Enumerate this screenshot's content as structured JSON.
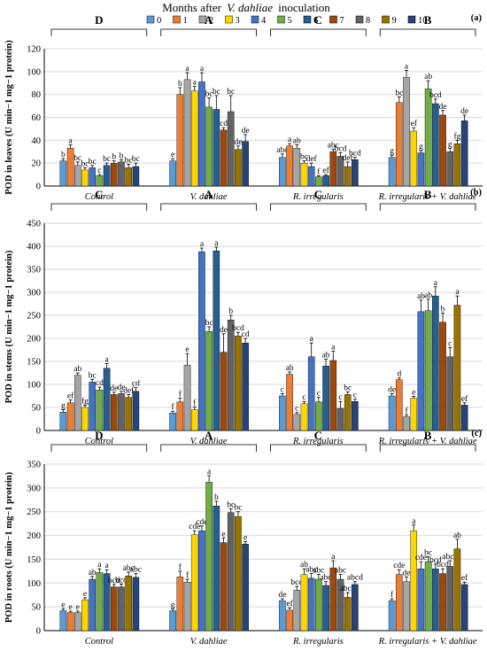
{
  "legend": {
    "title_prefix": "Months after",
    "title_species": "V. dahliae",
    "title_suffix": "inoculation",
    "labels": [
      "0",
      "1",
      "2",
      "3",
      "4",
      "5",
      "6",
      "7",
      "8",
      "9",
      "10"
    ],
    "colors": [
      "#5b9bd5",
      "#ed7d31",
      "#a5a5a5",
      "#ffd700",
      "#4472c4",
      "#70ad47",
      "#255e91",
      "#9e480e",
      "#636363",
      "#997300",
      "#264478"
    ]
  },
  "chart_data": [
    {
      "type": "bar",
      "panel": "(a)",
      "ylabel": "POD in leaves (U min−1 mg−1 protein)",
      "ylim": [
        0,
        120
      ],
      "yticks": [
        0,
        20,
        40,
        60,
        80,
        100,
        120
      ],
      "grid": true,
      "categories": [
        "Control",
        "V. dahliae",
        "R. irregularis",
        "R. irregularis + V. dahliae"
      ],
      "group_letters": [
        "D",
        "A",
        "C",
        "B"
      ],
      "values": [
        [
          22,
          33,
          18,
          14,
          16,
          9,
          18,
          20,
          21,
          16,
          17
        ],
        [
          22,
          80,
          93,
          83,
          91,
          69,
          67,
          49,
          65,
          32,
          39
        ],
        [
          25,
          35,
          33,
          20,
          17,
          8,
          9,
          30,
          26,
          17,
          23
        ],
        [
          25,
          73,
          95,
          48,
          29,
          85,
          72,
          62,
          30,
          37,
          57
        ]
      ],
      "errors": [
        [
          2,
          3,
          3,
          2,
          2,
          1,
          2,
          2,
          2,
          3,
          3
        ],
        [
          2,
          6,
          6,
          4,
          8,
          8,
          12,
          2,
          14,
          3,
          6
        ],
        [
          3,
          2,
          3,
          2,
          3,
          1,
          1,
          2,
          3,
          4,
          2
        ],
        [
          2,
          5,
          6,
          3,
          2,
          7,
          4,
          4,
          3,
          3,
          5
        ]
      ],
      "sig": [
        [
          "b",
          "a",
          "bc",
          "bc",
          "bc",
          "c",
          "bc",
          "b",
          "b",
          "bc",
          "bc"
        ],
        [
          "e",
          "b",
          "a",
          "a",
          "a",
          "bc",
          "bc",
          "cd",
          "bc",
          "de",
          "de"
        ],
        [
          "abc",
          "a",
          "ab",
          "bc",
          "def",
          "f",
          "ef",
          "abc",
          "bcd",
          "def",
          "bcd"
        ],
        [
          "g",
          "bc",
          "a",
          "ef",
          "g",
          "ab",
          "bcd",
          "de",
          "g",
          "fg",
          "de"
        ]
      ]
    },
    {
      "type": "bar",
      "panel": "(b)",
      "ylabel": "POD in stems (U min−1 mg−1 protein)",
      "ylim": [
        0,
        450
      ],
      "yticks": [
        0,
        50,
        100,
        150,
        200,
        250,
        300,
        350,
        400,
        450
      ],
      "grid": true,
      "categories": [
        "Control",
        "V. dahliae",
        "R. irregularis",
        "R. irregularis + V. dahliae"
      ],
      "group_letters": [
        "C",
        "A",
        "C",
        "B"
      ],
      "values": [
        [
          40,
          60,
          120,
          50,
          105,
          88,
          135,
          78,
          80,
          72,
          85
        ],
        [
          38,
          62,
          142,
          45,
          388,
          215,
          390,
          170,
          240,
          205,
          190
        ],
        [
          75,
          122,
          35,
          58,
          160,
          62,
          140,
          152,
          48,
          78,
          63
        ],
        [
          75,
          110,
          30,
          70,
          258,
          260,
          292,
          235,
          160,
          272,
          55
        ]
      ],
      "errors": [
        [
          5,
          6,
          5,
          5,
          6,
          6,
          10,
          5,
          5,
          6,
          8
        ],
        [
          4,
          8,
          25,
          6,
          8,
          10,
          8,
          40,
          10,
          8,
          10
        ],
        [
          5,
          5,
          4,
          5,
          30,
          10,
          15,
          20,
          15,
          6,
          5
        ],
        [
          5,
          4,
          4,
          4,
          25,
          25,
          20,
          20,
          20,
          20,
          5
        ]
      ],
      "sig": [
        [
          "g",
          "ef",
          "ab",
          "fg",
          "bc",
          "cd",
          "a",
          "de",
          "de",
          "def",
          "cd"
        ],
        [
          "f",
          "f",
          "e",
          "f",
          "a",
          "bc",
          "a",
          "de",
          "b",
          "bcd",
          "cd"
        ],
        [
          "c",
          "ab",
          "c",
          "c",
          "a",
          "c",
          "ab",
          "a",
          "c",
          "bc",
          "c"
        ],
        [
          "de",
          "d",
          "f",
          "e",
          "ab",
          "ab",
          "a",
          "b",
          "c",
          "a",
          "ef"
        ]
      ]
    },
    {
      "type": "bar",
      "panel": "(c)",
      "ylabel": "POD in roots (U min−1 mg−1 protein)",
      "ylim": [
        0,
        350
      ],
      "yticks": [
        0,
        50,
        100,
        150,
        200,
        250,
        300,
        350
      ],
      "grid": true,
      "categories": [
        "Control",
        "V. dahliae",
        "R. irregularis",
        "R. irregularis + V. dahliae"
      ],
      "group_letters": [
        "D",
        "A",
        "C",
        "B"
      ],
      "values": [
        [
          42,
          38,
          38,
          65,
          108,
          122,
          120,
          92,
          92,
          115,
          112
        ],
        [
          42,
          113,
          102,
          202,
          210,
          312,
          262,
          185,
          248,
          240,
          182
        ],
        [
          63,
          43,
          85,
          118,
          110,
          108,
          95,
          132,
          108,
          70,
          97
        ],
        [
          63,
          118,
          103,
          210,
          130,
          145,
          130,
          120,
          135,
          172,
          97
        ]
      ],
      "errors": [
        [
          4,
          3,
          3,
          4,
          6,
          8,
          8,
          5,
          6,
          8,
          8
        ],
        [
          4,
          12,
          6,
          8,
          10,
          14,
          10,
          10,
          8,
          10,
          5
        ],
        [
          4,
          5,
          8,
          12,
          10,
          10,
          8,
          15,
          10,
          10,
          6
        ],
        [
          4,
          10,
          10,
          12,
          15,
          10,
          10,
          10,
          12,
          20,
          5
        ]
      ],
      "sig": [
        [
          "e",
          "e",
          "e",
          "e",
          "ab",
          "a",
          "a",
          "bcd",
          "bcd",
          "abc",
          "abc"
        ],
        [
          "g",
          "f",
          "f",
          "cde",
          "cde",
          "a",
          "b",
          "e",
          "bc",
          "bc",
          "e"
        ],
        [
          "de",
          "ef",
          "bcd",
          "ab",
          "abc",
          "abc",
          "abc",
          "a",
          "abc",
          "abcd",
          "abcd"
        ],
        [
          "f",
          "cde",
          "de",
          "a",
          "cde",
          "bc",
          "bcd",
          "bcd",
          "abcd",
          "ab",
          "ef"
        ]
      ]
    }
  ]
}
